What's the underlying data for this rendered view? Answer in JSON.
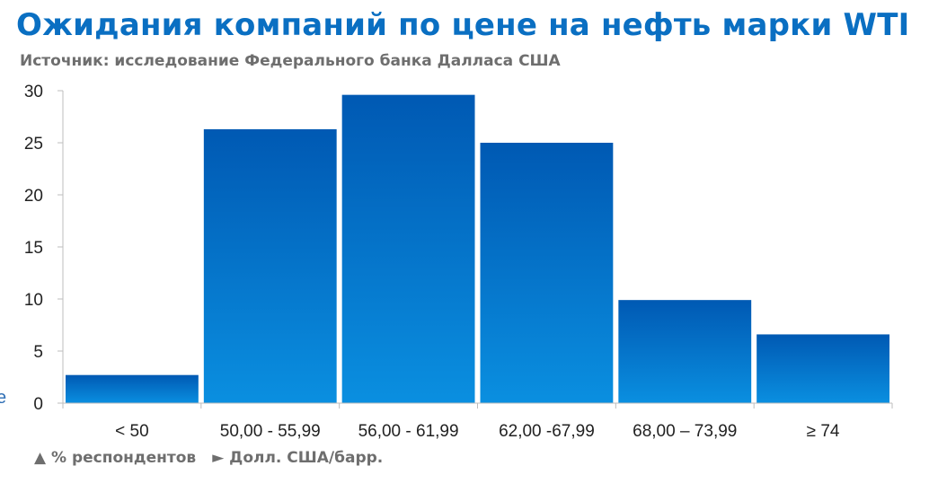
{
  "header": {
    "title": "Ожидания компаний по цене на нефть марки WTI",
    "subtitle": "Источник: исследование Федерального банка Далласа США"
  },
  "footer": {
    "y_unit_note": "▲ % респондентов",
    "x_unit_note": "► Долл. США/барр."
  },
  "edge_fragments": [
    "’",
    "e"
  ],
  "colors": {
    "title": "#0a6fc2",
    "bar_top": "#0059b3",
    "bar_bottom": "#0a8fe0",
    "axis": "#bdbdbd",
    "muted_text": "#6e6e6e"
  },
  "chart_data": {
    "type": "bar",
    "categories": [
      "< 50",
      "50,00 - 55,99",
      "56,00 - 61,99",
      "62,00 -67,99",
      "68,00 – 73,99",
      "≥ 74"
    ],
    "values": [
      2.7,
      26.3,
      29.6,
      25.0,
      9.9,
      6.6
    ],
    "ylim": [
      0,
      30
    ],
    "yticks": [
      0,
      5,
      10,
      15,
      20,
      25,
      30
    ],
    "grid": false,
    "legend": "none"
  }
}
